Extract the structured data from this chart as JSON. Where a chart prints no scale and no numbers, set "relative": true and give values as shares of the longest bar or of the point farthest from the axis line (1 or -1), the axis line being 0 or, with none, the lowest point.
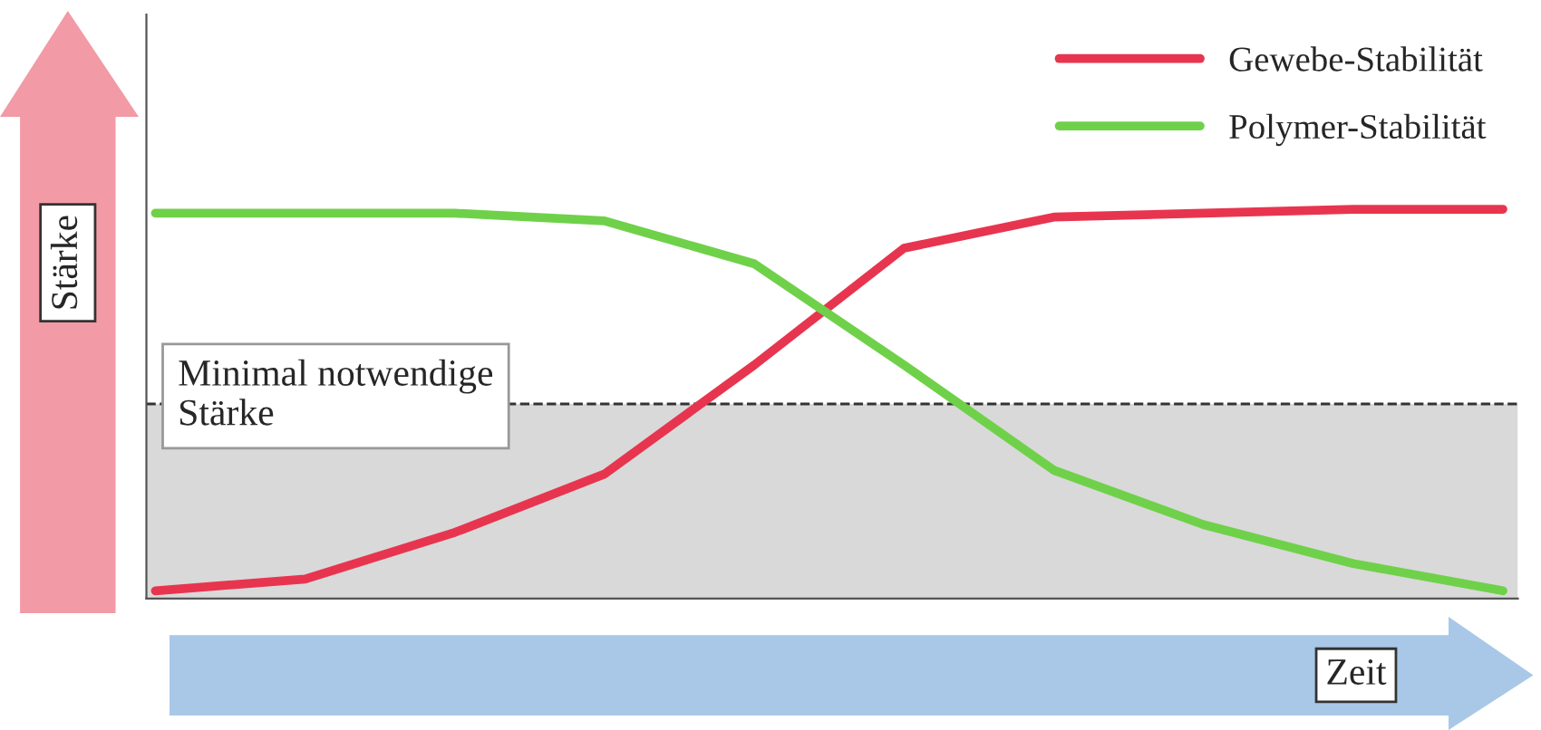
{
  "chart_data": {
    "type": "line",
    "relative": true,
    "xlabel": "Zeit",
    "ylabel": "Stärke",
    "categories": [
      null,
      null,
      null,
      null,
      null,
      null,
      null,
      null,
      null,
      null
    ],
    "series": [
      {
        "name": "Gewebe-Stabilität",
        "color": "#e8354f",
        "values": [
          0.02,
          0.05,
          0.17,
          0.32,
          0.6,
          0.9,
          0.98,
          0.99,
          1.0,
          1.0
        ]
      },
      {
        "name": "Polymer-Stabilität",
        "color": "#6fd14a",
        "values": [
          0.99,
          0.99,
          0.99,
          0.97,
          0.86,
          0.6,
          0.33,
          0.19,
          0.09,
          0.02
        ]
      }
    ],
    "bands": [
      {
        "axis": "y",
        "from": 0,
        "to": 0.5,
        "label": "Minimal notwendige\nStärke",
        "color": "#d9d9d9"
      }
    ],
    "ref_lines": [
      {
        "axis": "y",
        "value": 0.5,
        "color": "#333333",
        "line_style": "dashed"
      }
    ],
    "legend": "top right",
    "grid": false,
    "marker": "none",
    "line_style": "solid"
  }
}
